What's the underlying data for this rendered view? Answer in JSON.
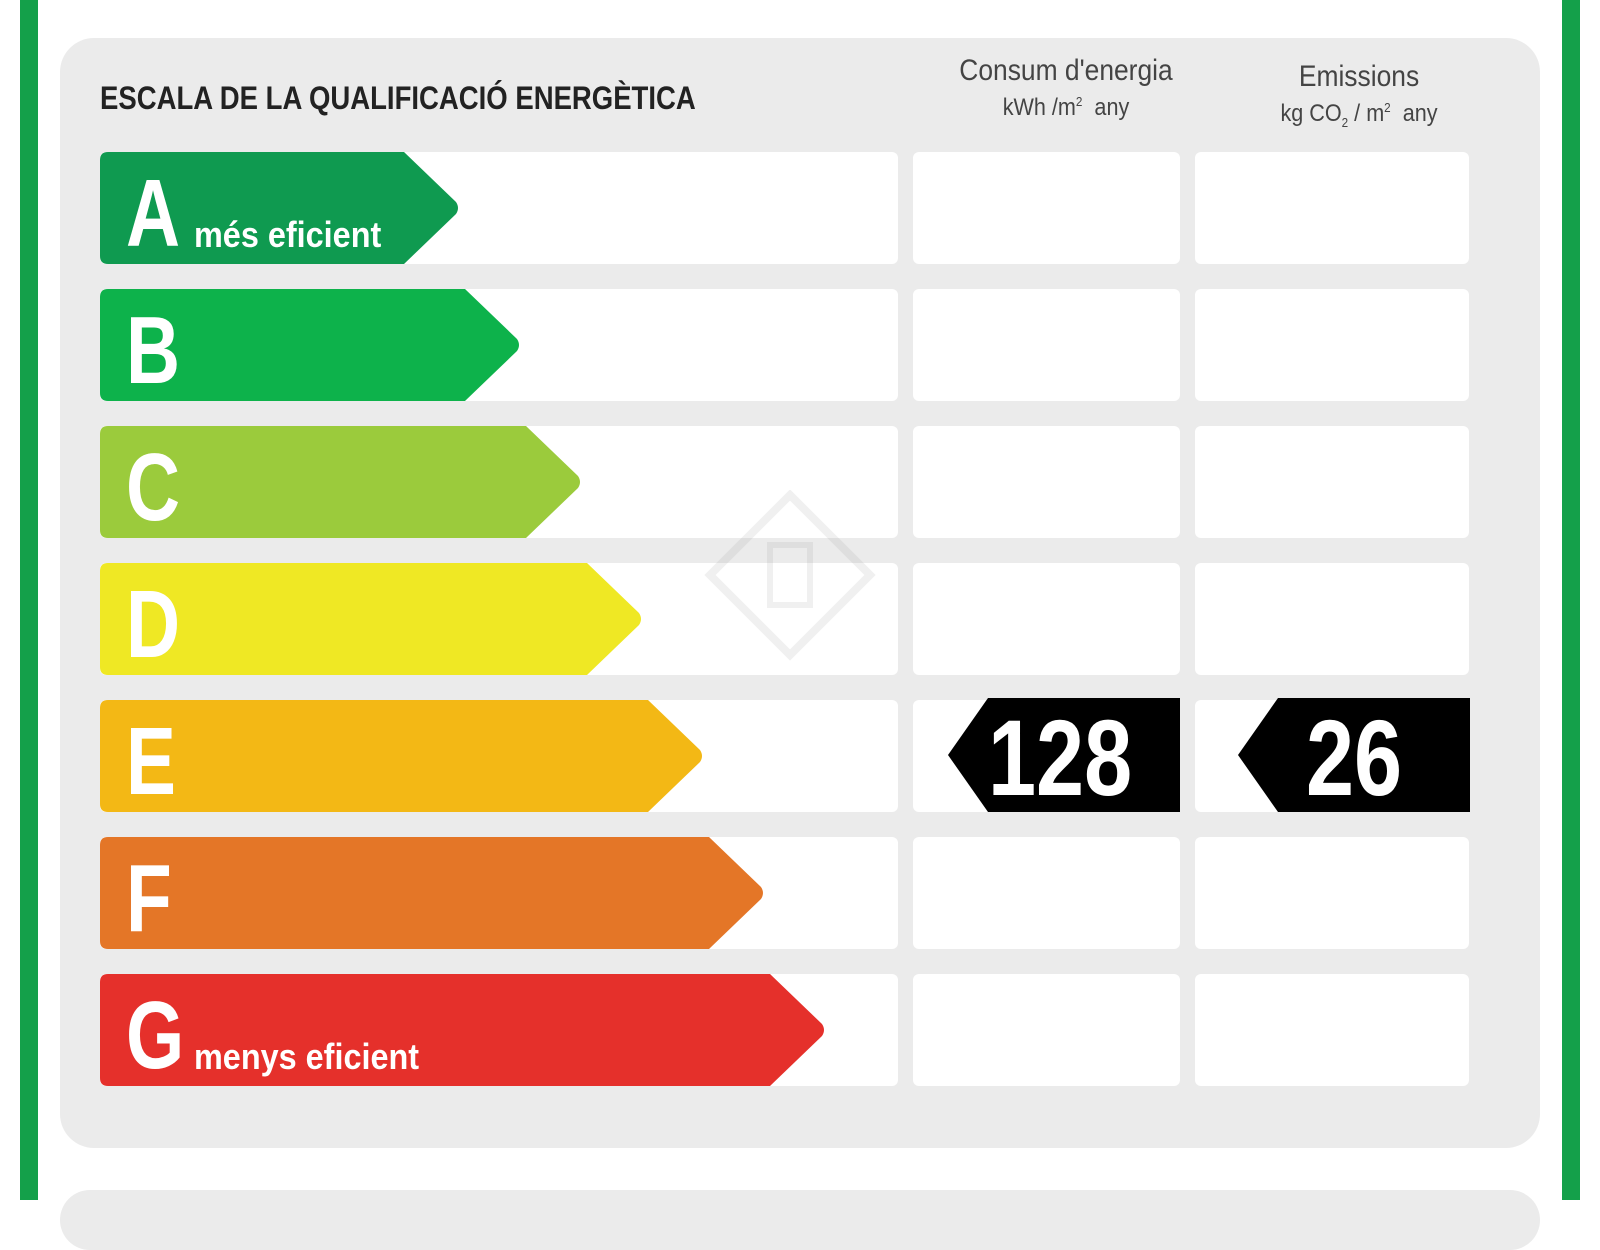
{
  "title": "ESCALA DE LA QUALIFICACIÓ ENERGÈTICA",
  "columns": {
    "energy": {
      "title": "Consum d'energia",
      "unit_prefix": "kWh /m",
      "unit_exp": "2",
      "unit_suffix": "any"
    },
    "emissions": {
      "title": "Emissions",
      "unit_prefix": "kg CO",
      "unit_sub": "2",
      "unit_mid": " / m",
      "unit_exp": "2",
      "unit_suffix": "any"
    }
  },
  "ratings": [
    {
      "letter": "A",
      "label": "més eficient",
      "color": "#0f9a50"
    },
    {
      "letter": "B",
      "label": "",
      "color": "#0db24b"
    },
    {
      "letter": "C",
      "label": "",
      "color": "#9bcb3c"
    },
    {
      "letter": "D",
      "label": "",
      "color": "#efe824"
    },
    {
      "letter": "E",
      "label": "",
      "color": "#f3b815"
    },
    {
      "letter": "F",
      "label": "",
      "color": "#e47627"
    },
    {
      "letter": "G",
      "label": "menys eficient",
      "color": "#e5302b"
    }
  ],
  "current_rating": "E",
  "energy_value": "128",
  "emissions_value": "26",
  "colors": {
    "frame": "#14a04a",
    "panel": "#ebebeb",
    "marker": "#000000"
  }
}
